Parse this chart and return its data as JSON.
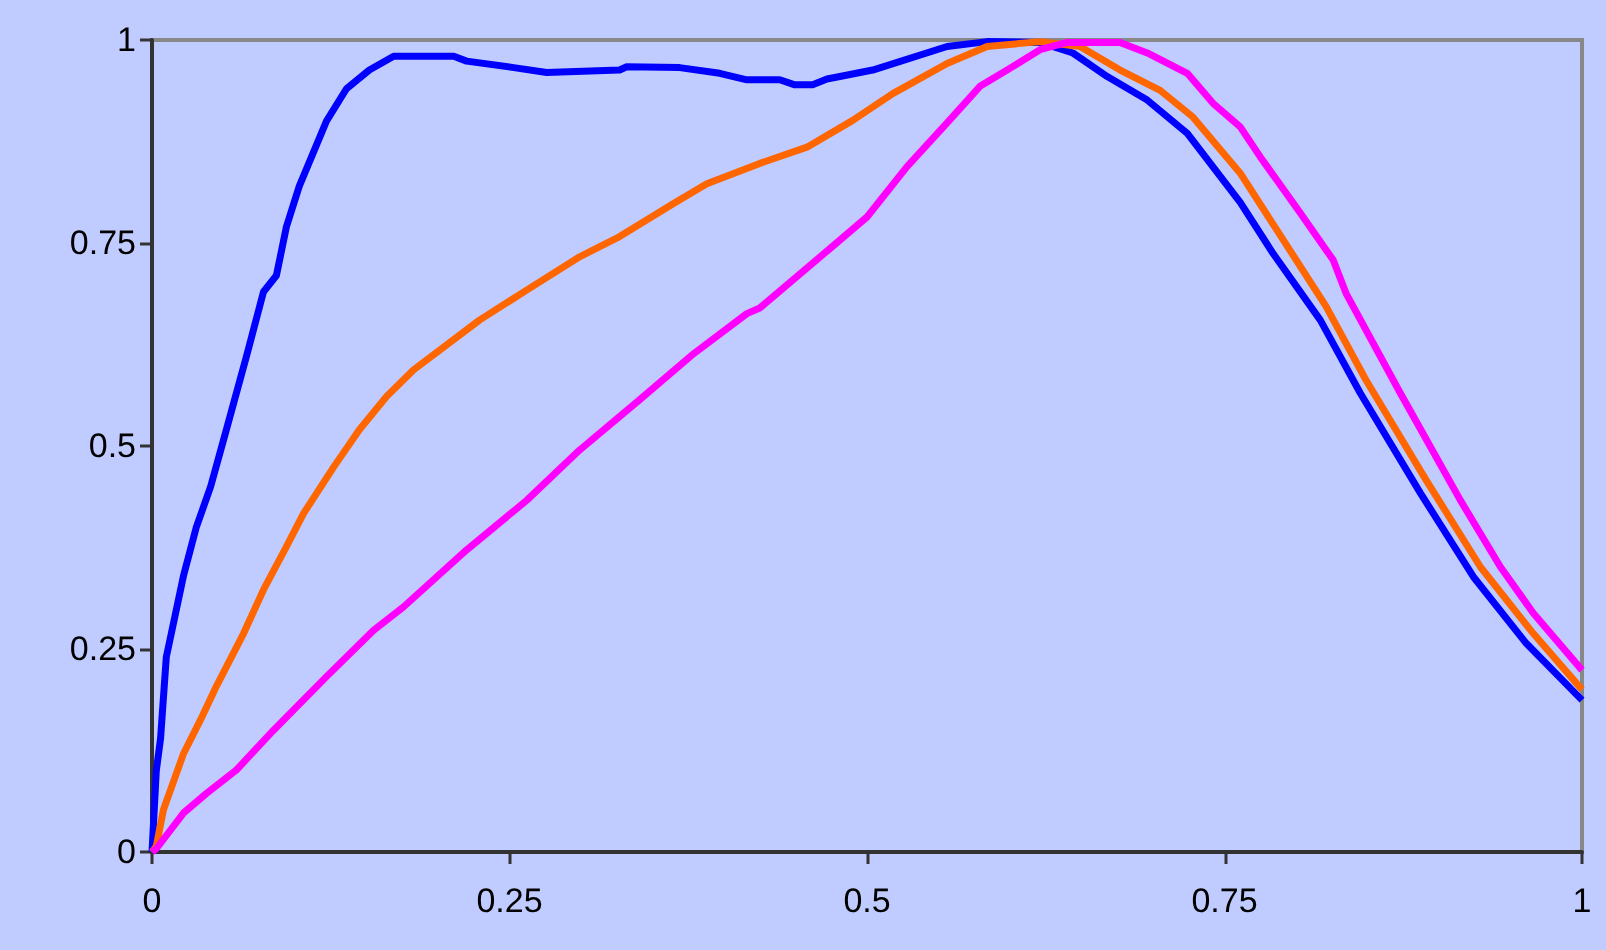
{
  "chart_data": {
    "type": "line",
    "xlim": [
      0,
      1
    ],
    "ylim": [
      0,
      1
    ],
    "xticks": [
      0,
      0.25,
      0.5,
      0.75,
      1
    ],
    "yticks": [
      0,
      0.25,
      0.5,
      0.75,
      1
    ],
    "series": [
      {
        "color": "#0000ff",
        "x": [
          0,
          0.003,
          0.006,
          0.01,
          0.022,
          0.031,
          0.041,
          0.052,
          0.066,
          0.078,
          0.087,
          0.094,
          0.103,
          0.122,
          0.136,
          0.152,
          0.169,
          0.211,
          0.22,
          0.253,
          0.276,
          0.327,
          0.332,
          0.369,
          0.397,
          0.416,
          0.439,
          0.449,
          0.462,
          0.472,
          0.481,
          0.504,
          0.556,
          0.584,
          0.621,
          0.644,
          0.668,
          0.696,
          0.724,
          0.761,
          0.784,
          0.817,
          0.845,
          0.887,
          0.924,
          0.961,
          1
        ],
        "values": [
          0,
          0.1,
          0.14,
          0.24,
          0.34,
          0.4,
          0.45,
          0.52,
          0.61,
          0.69,
          0.71,
          0.77,
          0.82,
          0.9,
          0.94,
          0.963,
          0.98,
          0.98,
          0.974,
          0.966,
          0.96,
          0.963,
          0.967,
          0.966,
          0.959,
          0.951,
          0.951,
          0.945,
          0.945,
          0.952,
          0.955,
          0.963,
          0.992,
          0.998,
          0.997,
          0.984,
          0.955,
          0.926,
          0.885,
          0.8,
          0.737,
          0.655,
          0.565,
          0.442,
          0.339,
          0.257,
          0.187
        ]
      },
      {
        "color": "#ff6600",
        "x": [
          0,
          0.003,
          0.008,
          0.022,
          0.034,
          0.045,
          0.064,
          0.078,
          0.094,
          0.106,
          0.127,
          0.145,
          0.164,
          0.183,
          0.229,
          0.262,
          0.299,
          0.327,
          0.365,
          0.388,
          0.425,
          0.458,
          0.49,
          0.518,
          0.556,
          0.584,
          0.621,
          0.649,
          0.677,
          0.705,
          0.728,
          0.761,
          0.821,
          0.849,
          0.891,
          0.929,
          0.966,
          1
        ],
        "values": [
          0,
          0.007,
          0.052,
          0.121,
          0.163,
          0.204,
          0.269,
          0.323,
          0.376,
          0.417,
          0.474,
          0.52,
          0.561,
          0.594,
          0.655,
          0.692,
          0.733,
          0.758,
          0.799,
          0.823,
          0.848,
          0.868,
          0.901,
          0.934,
          0.971,
          0.992,
          0.998,
          0.992,
          0.963,
          0.938,
          0.905,
          0.836,
          0.672,
          0.581,
          0.458,
          0.351,
          0.269,
          0.2
        ]
      },
      {
        "color": "#ff00ff",
        "x": [
          0,
          0.003,
          0.022,
          0.038,
          0.059,
          0.085,
          0.122,
          0.155,
          0.176,
          0.22,
          0.262,
          0.299,
          0.341,
          0.379,
          0.416,
          0.425,
          0.476,
          0.5,
          0.528,
          0.556,
          0.579,
          0.598,
          0.621,
          0.64,
          0.677,
          0.696,
          0.724,
          0.742,
          0.761,
          0.775,
          0.803,
          0.826,
          0.835,
          0.873,
          0.915,
          0.943,
          0.966,
          1
        ],
        "values": [
          0,
          0.004,
          0.048,
          0.072,
          0.101,
          0.15,
          0.216,
          0.273,
          0.302,
          0.372,
          0.433,
          0.495,
          0.557,
          0.614,
          0.663,
          0.67,
          0.746,
          0.782,
          0.844,
          0.898,
          0.943,
          0.963,
          0.988,
          0.997,
          0.997,
          0.984,
          0.959,
          0.922,
          0.893,
          0.856,
          0.787,
          0.729,
          0.688,
          0.565,
          0.433,
          0.351,
          0.294,
          0.224
        ]
      }
    ]
  }
}
